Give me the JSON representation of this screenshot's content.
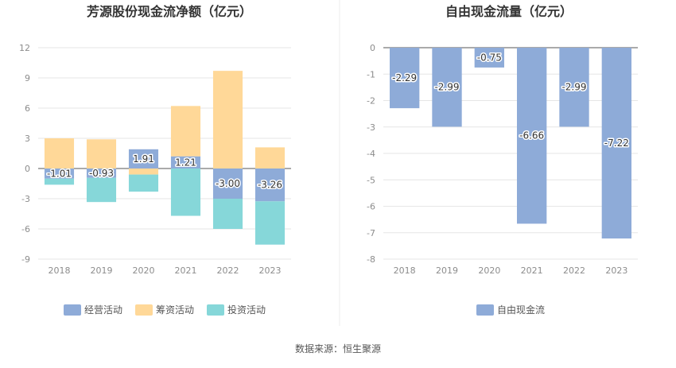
{
  "footer": {
    "source": "数据来源：恒生聚源"
  },
  "chart_data": [
    {
      "type": "bar",
      "stacked": true,
      "title": "芳源股份现金流净额（亿元）",
      "categories": [
        "2018",
        "2019",
        "2020",
        "2021",
        "2022",
        "2023"
      ],
      "ylim": [
        -9,
        12
      ],
      "yticks": [
        12,
        9,
        6,
        3,
        0,
        -3,
        -6,
        -9
      ],
      "grid": true,
      "legend_position": "bottom",
      "series": [
        {
          "name": "经营活动",
          "color": "#8eabd8",
          "values": [
            -1.01,
            -0.93,
            1.91,
            1.21,
            -3.0,
            -3.26
          ],
          "labels": [
            "-1.01",
            "-0.93",
            "1.91",
            "1.21",
            "-3.00",
            "-3.26"
          ]
        },
        {
          "name": "筹资活动",
          "color": "#ffd898",
          "values": [
            3.0,
            2.9,
            -0.6,
            5.0,
            9.7,
            2.1
          ]
        },
        {
          "name": "投资活动",
          "color": "#86d7d9",
          "values": [
            -0.6,
            -2.4,
            -1.7,
            -4.7,
            -3.0,
            -4.3
          ]
        }
      ]
    },
    {
      "type": "bar",
      "title": "自由现金流量（亿元）",
      "categories": [
        "2018",
        "2019",
        "2020",
        "2021",
        "2022",
        "2023"
      ],
      "ylim": [
        -8,
        0
      ],
      "yticks": [
        0,
        -1,
        -2,
        -3,
        -4,
        -5,
        -6,
        -7,
        -8
      ],
      "grid": true,
      "legend_position": "bottom",
      "series": [
        {
          "name": "自由现金流",
          "color": "#8eabd8",
          "values": [
            -2.29,
            -2.99,
            -0.75,
            -6.66,
            -2.99,
            -7.22
          ],
          "labels": [
            "-2.29",
            "-2.99",
            "-0.75",
            "-6.66",
            "-2.99",
            "-7.22"
          ]
        }
      ]
    }
  ]
}
